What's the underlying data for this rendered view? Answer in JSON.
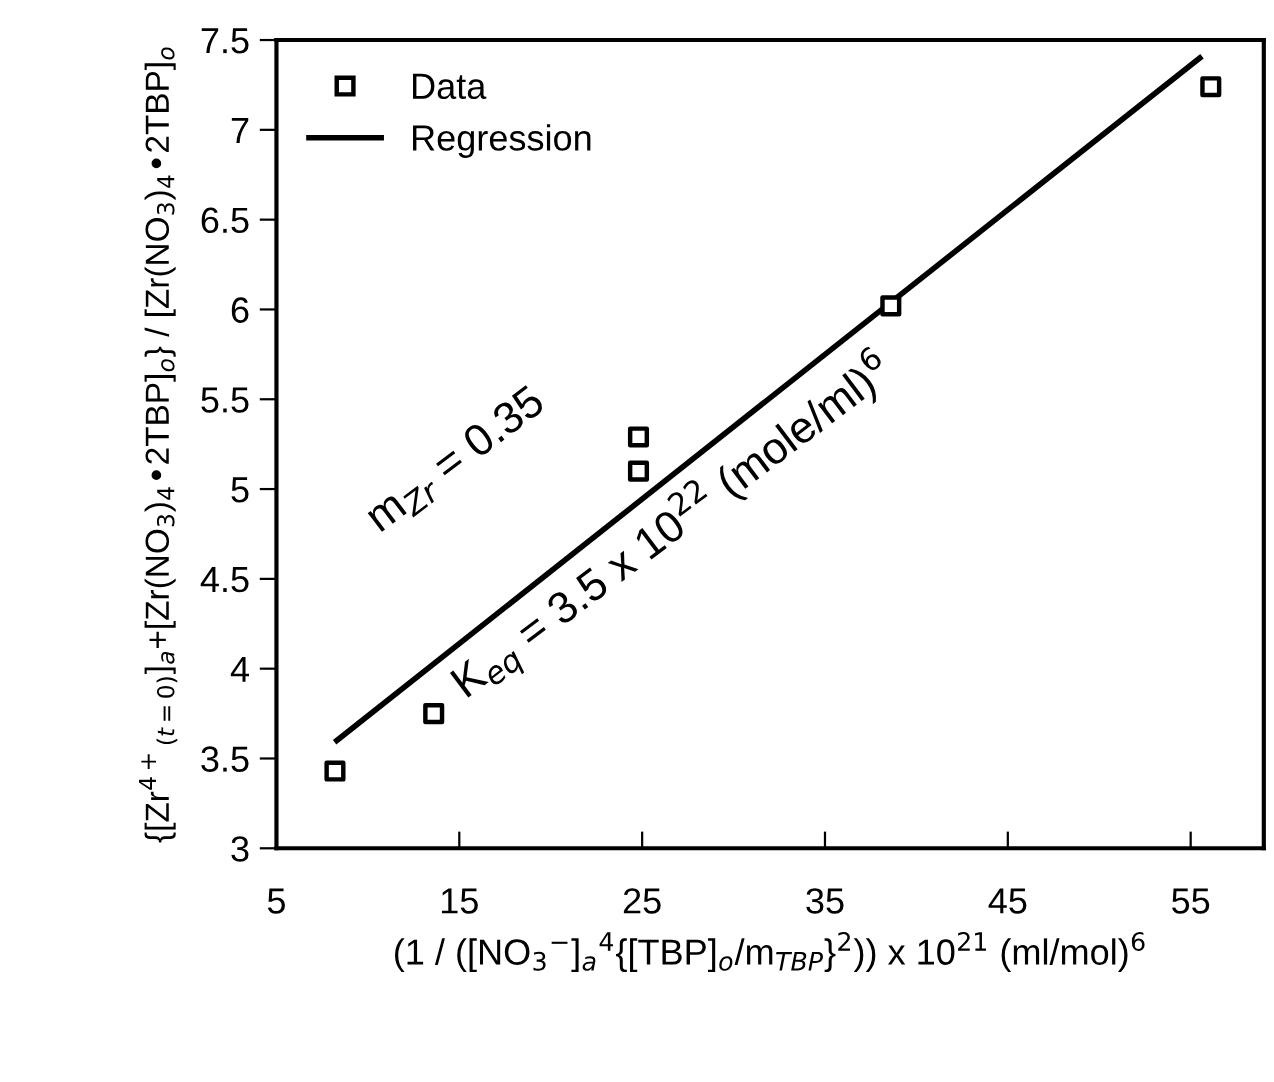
{
  "chart_data": {
    "type": "scatter",
    "xlabel": "(1 / ([NO$_{3}$$^{−}$]$_{a}$$^{4}${[TBP]$_{o}$/m$_{TBP}$}$^{2}$)) x 10$^{21}$ (ml/mol)$^{6}$",
    "ylabel": "{[Zr$^{4+}$$_{(t=0)}$]$_{a}$+[Zr(NO$_{3}$)$_{4}$•2TBP]$_{o}$} / [Zr(NO$_{3}$)$_{4}$•2TBP]$_{o}$",
    "series": [
      {
        "name": "Data",
        "marker": "square",
        "color": "#000000",
        "x": [
          8.2,
          13.6,
          24.8,
          24.8,
          38.6,
          56.1
        ],
        "values": [
          3.43,
          3.75,
          5.29,
          5.1,
          6.02,
          7.24
        ]
      },
      {
        "name": "Regression",
        "type": "line",
        "color": "#000000",
        "x": [
          8.3,
          55.5
        ],
        "values": [
          3.6,
          7.4
        ]
      }
    ],
    "annotations": [
      "m$_{Zr}$ = 0.35",
      "K$_{eq}$ = 3.5 x 10$^{22}$ (mole/ml)$^{6}$"
    ],
    "xlim": [
      5,
      59
    ],
    "ylim": [
      3,
      7.5
    ],
    "xticks": [
      5,
      15,
      25,
      35,
      45,
      55
    ],
    "yticks": [
      3,
      3.5,
      4,
      4.5,
      5,
      5.5,
      6,
      6.5,
      7,
      7.5
    ],
    "line_style": "solid",
    "legend": "top left",
    "grid": false
  }
}
